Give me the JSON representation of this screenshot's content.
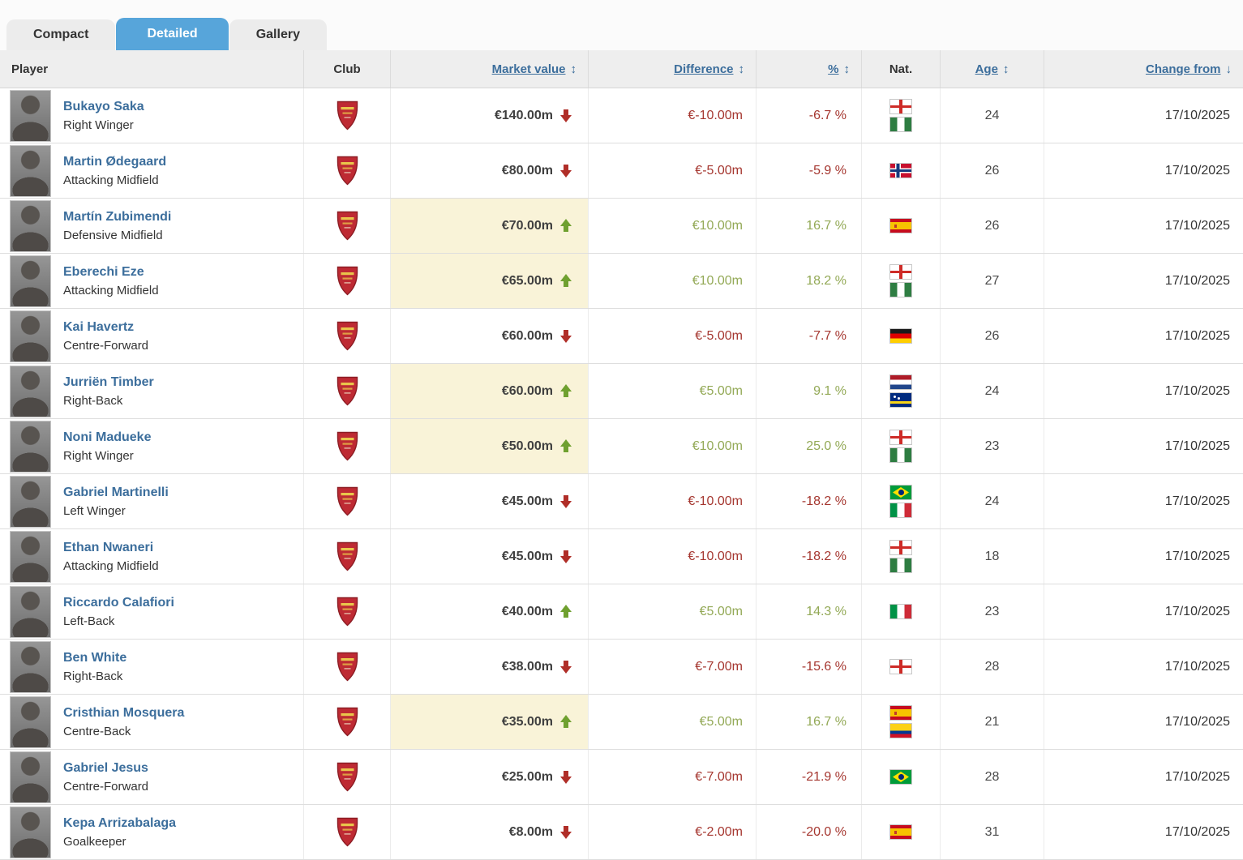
{
  "tabs": [
    {
      "label": "Compact",
      "active": false
    },
    {
      "label": "Detailed",
      "active": true
    },
    {
      "label": "Gallery",
      "active": false
    }
  ],
  "club": {
    "name": "Arsenal FC"
  },
  "colors": {
    "active_tab_blue": "#57a5da",
    "link_blue": "#3c6e9c",
    "positive_green": "#93a956",
    "positive_arrow_green": "#6fa02f",
    "negative_red": "#a5362f",
    "negative_arrow_red": "#b02e28",
    "highlight_beige": "#f9f3d8",
    "header_gray": "#eeeeee"
  },
  "table": {
    "columns": [
      {
        "key": "player",
        "label": "Player",
        "align": "left",
        "sortable": false,
        "sort": null
      },
      {
        "key": "club",
        "label": "Club",
        "align": "center",
        "sortable": false,
        "sort": null
      },
      {
        "key": "market_value",
        "label": "Market value",
        "align": "right",
        "sortable": true,
        "sort": "both"
      },
      {
        "key": "difference",
        "label": "Difference",
        "align": "right",
        "sortable": true,
        "sort": "both"
      },
      {
        "key": "percent",
        "label": "%",
        "align": "right",
        "sortable": true,
        "sort": "both"
      },
      {
        "key": "nat",
        "label": "Nat.",
        "align": "center",
        "sortable": false,
        "sort": null
      },
      {
        "key": "age",
        "label": "Age",
        "align": "center",
        "sortable": true,
        "sort": "both"
      },
      {
        "key": "change_from",
        "label": "Change from",
        "align": "right",
        "sortable": true,
        "sort": "desc"
      }
    ],
    "rows": [
      {
        "name": "Bukayo Saka",
        "position": "Right Winger",
        "market_value": "€140.00m",
        "trend": "down",
        "highlight": false,
        "difference": "€-10.00m",
        "percent": "-6.7 %",
        "nats": [
          "england",
          "nigeria"
        ],
        "age": "24",
        "change_from": "17/10/2025"
      },
      {
        "name": "Martin Ødegaard",
        "position": "Attacking Midfield",
        "market_value": "€80.00m",
        "trend": "down",
        "highlight": false,
        "difference": "€-5.00m",
        "percent": "-5.9 %",
        "nats": [
          "norway"
        ],
        "age": "26",
        "change_from": "17/10/2025"
      },
      {
        "name": "Martín Zubimendi",
        "position": "Defensive Midfield",
        "market_value": "€70.00m",
        "trend": "up",
        "highlight": true,
        "difference": "€10.00m",
        "percent": "16.7 %",
        "nats": [
          "spain"
        ],
        "age": "26",
        "change_from": "17/10/2025"
      },
      {
        "name": "Eberechi Eze",
        "position": "Attacking Midfield",
        "market_value": "€65.00m",
        "trend": "up",
        "highlight": true,
        "difference": "€10.00m",
        "percent": "18.2 %",
        "nats": [
          "england",
          "nigeria"
        ],
        "age": "27",
        "change_from": "17/10/2025"
      },
      {
        "name": "Kai Havertz",
        "position": "Centre-Forward",
        "market_value": "€60.00m",
        "trend": "down",
        "highlight": false,
        "difference": "€-5.00m",
        "percent": "-7.7 %",
        "nats": [
          "germany"
        ],
        "age": "26",
        "change_from": "17/10/2025"
      },
      {
        "name": "Jurriën Timber",
        "position": "Right-Back",
        "market_value": "€60.00m",
        "trend": "up",
        "highlight": true,
        "difference": "€5.00m",
        "percent": "9.1 %",
        "nats": [
          "netherlands",
          "curacao"
        ],
        "age": "24",
        "change_from": "17/10/2025"
      },
      {
        "name": "Noni Madueke",
        "position": "Right Winger",
        "market_value": "€50.00m",
        "trend": "up",
        "highlight": true,
        "difference": "€10.00m",
        "percent": "25.0 %",
        "nats": [
          "england",
          "nigeria"
        ],
        "age": "23",
        "change_from": "17/10/2025"
      },
      {
        "name": "Gabriel Martinelli",
        "position": "Left Winger",
        "market_value": "€45.00m",
        "trend": "down",
        "highlight": false,
        "difference": "€-10.00m",
        "percent": "-18.2 %",
        "nats": [
          "brazil",
          "italy"
        ],
        "age": "24",
        "change_from": "17/10/2025"
      },
      {
        "name": "Ethan Nwaneri",
        "position": "Attacking Midfield",
        "market_value": "€45.00m",
        "trend": "down",
        "highlight": false,
        "difference": "€-10.00m",
        "percent": "-18.2 %",
        "nats": [
          "england",
          "nigeria"
        ],
        "age": "18",
        "change_from": "17/10/2025"
      },
      {
        "name": "Riccardo Calafiori",
        "position": "Left-Back",
        "market_value": "€40.00m",
        "trend": "up",
        "highlight": false,
        "difference": "€5.00m",
        "percent": "14.3 %",
        "nats": [
          "italy"
        ],
        "age": "23",
        "change_from": "17/10/2025"
      },
      {
        "name": "Ben White",
        "position": "Right-Back",
        "market_value": "€38.00m",
        "trend": "down",
        "highlight": false,
        "difference": "€-7.00m",
        "percent": "-15.6 %",
        "nats": [
          "england"
        ],
        "age": "28",
        "change_from": "17/10/2025"
      },
      {
        "name": "Cristhian Mosquera",
        "position": "Centre-Back",
        "market_value": "€35.00m",
        "trend": "up",
        "highlight": true,
        "difference": "€5.00m",
        "percent": "16.7 %",
        "nats": [
          "spain",
          "colombia"
        ],
        "age": "21",
        "change_from": "17/10/2025"
      },
      {
        "name": "Gabriel Jesus",
        "position": "Centre-Forward",
        "market_value": "€25.00m",
        "trend": "down",
        "highlight": false,
        "difference": "€-7.00m",
        "percent": "-21.9 %",
        "nats": [
          "brazil"
        ],
        "age": "28",
        "change_from": "17/10/2025"
      },
      {
        "name": "Kepa Arrizabalaga",
        "position": "Goalkeeper",
        "market_value": "€8.00m",
        "trend": "down",
        "highlight": false,
        "difference": "€-2.00m",
        "percent": "-20.0 %",
        "nats": [
          "spain"
        ],
        "age": "31",
        "change_from": "17/10/2025"
      }
    ]
  }
}
